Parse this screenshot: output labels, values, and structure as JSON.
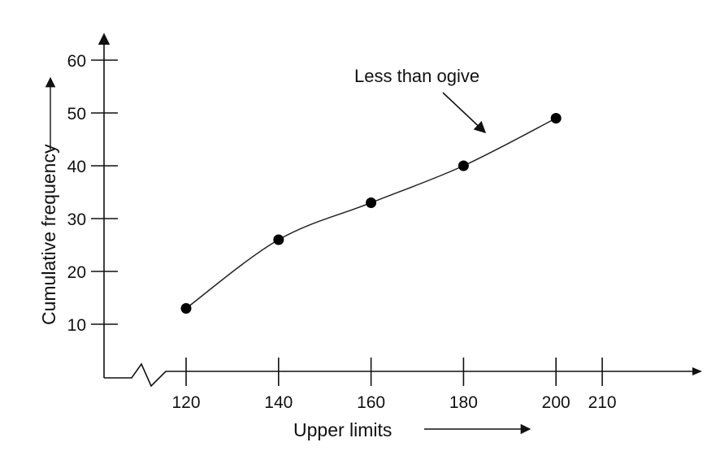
{
  "chart_data": {
    "type": "line",
    "title": "",
    "xlabel": "Upper limits",
    "ylabel": "Cumulative frequency",
    "x_ticks": [
      120,
      140,
      160,
      180,
      200,
      210
    ],
    "y_ticks": [
      10,
      20,
      30,
      40,
      50,
      60
    ],
    "x_axis_break": true,
    "grid": false,
    "smooth": true,
    "series": [
      {
        "x": [
          120,
          140,
          160,
          180,
          200
        ],
        "y": [
          13,
          26,
          33,
          40,
          49
        ]
      }
    ],
    "annotation": {
      "text": "Less than ogive",
      "points_to": "curve between 180 and 200"
    }
  }
}
